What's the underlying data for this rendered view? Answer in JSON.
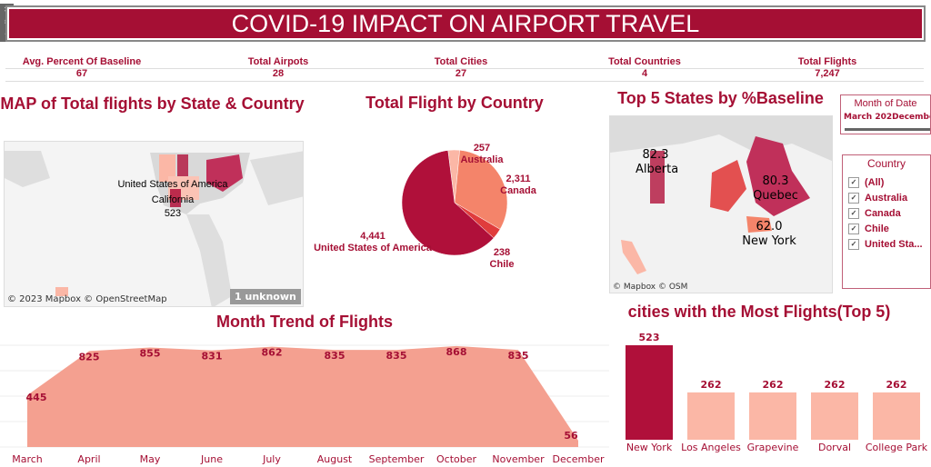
{
  "title": "COVID-19 IMPACT ON AIRPORT TRAVEL",
  "kpis": [
    {
      "label": "Avg. Percent Of Baseline",
      "value": "67"
    },
    {
      "label": "Total Airpots",
      "value": "28"
    },
    {
      "label": "Total Cities",
      "value": "27"
    },
    {
      "label": "Total Countries",
      "value": "4"
    },
    {
      "label": "Total Flights",
      "value": "7,247"
    }
  ],
  "map1": {
    "title": "MAP of Total flights by State & Country",
    "country": "United States of America",
    "state": "California",
    "value": "523",
    "attribution": "© 2023 Mapbox © OpenStreetMap",
    "unknown": "1 unknown"
  },
  "pie": {
    "title": "Total Flight by Country"
  },
  "map2": {
    "title": "Top 5 States by %Baseline",
    "attribution": "© Mapbox © OSM",
    "labels": [
      {
        "value": "82.3",
        "name": "Alberta"
      },
      {
        "value": "80.3",
        "name": "Quebec"
      },
      {
        "value": "62.0",
        "name": "New York"
      }
    ]
  },
  "filters": {
    "date_title": "Month of Date",
    "date_start": "March 202",
    "date_end": "December",
    "country_title": "Country",
    "countries": [
      "(All)",
      "Australia",
      "Canada",
      "Chile",
      "United Sta..."
    ]
  },
  "colors": {
    "primary": "#a50f34",
    "area": "#f4a090"
  },
  "chart_data": [
    {
      "type": "pie",
      "title": "Total Flight by Country",
      "slices": [
        {
          "name": "United States of America",
          "value": 4441,
          "label": "4,441",
          "color": "#b0103a"
        },
        {
          "name": "Chile",
          "value": 238,
          "label": "238",
          "color": "#e03c3c"
        },
        {
          "name": "Canada",
          "value": 2311,
          "label": "2,311",
          "color": "#f4846a"
        },
        {
          "name": "Australia",
          "value": 257,
          "label": "257",
          "color": "#fbb7a6"
        }
      ]
    },
    {
      "type": "area",
      "title": "Month Trend of Flights",
      "categories": [
        "March",
        "April",
        "May",
        "June",
        "July",
        "August",
        "September",
        "October",
        "November",
        "December"
      ],
      "values": [
        445,
        825,
        855,
        831,
        862,
        835,
        835,
        868,
        835,
        56
      ]
    },
    {
      "type": "bar",
      "title": "cities with the Most Flights(Top 5)",
      "categories": [
        "New York",
        "Los Angeles",
        "Grapevine",
        "Dorval",
        "College Park"
      ],
      "values": [
        523,
        262,
        262,
        262,
        262
      ]
    }
  ]
}
